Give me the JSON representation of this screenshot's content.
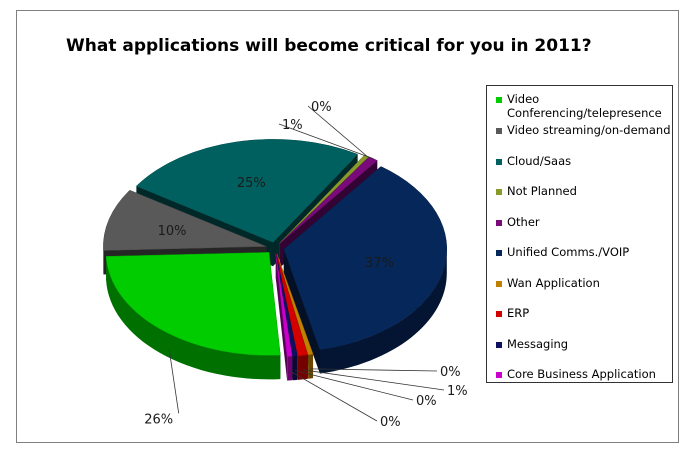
{
  "chart_data": {
    "type": "pie",
    "title": "What applications will become critical for you in 2011?",
    "categories": [
      "Video Conferencing/telepresence",
      "Video streaming/on-demand",
      "Cloud/Saas",
      "Not Planned",
      "Other",
      "Unified Comms./VOIP",
      "Wan Application",
      "ERP",
      "Messaging",
      "Core Business Application"
    ],
    "values": [
      26,
      10,
      25,
      0,
      1,
      37,
      0,
      1,
      0,
      0
    ],
    "value_labels": [
      "26%",
      "10%",
      "25%",
      "0%",
      "1%",
      "37%",
      "0%",
      "1%",
      "0%",
      "0%"
    ],
    "colors": [
      "#00cc00",
      "#595959",
      "#006060",
      "#8a9a2a",
      "#7a0a7a",
      "#06275a",
      "#c08000",
      "#d40000",
      "#101060",
      "#cc00cc"
    ],
    "legend_position": "right",
    "style": "3d-exploded"
  }
}
